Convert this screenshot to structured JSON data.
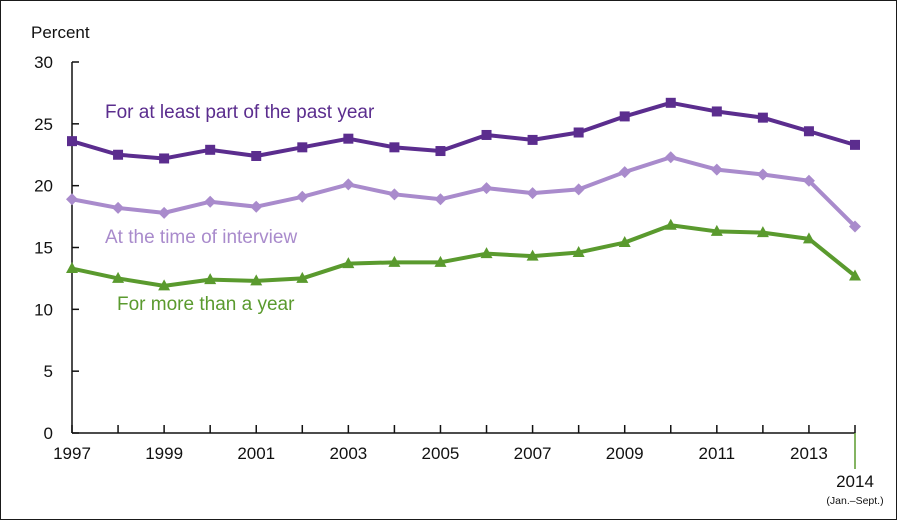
{
  "chart_data": {
    "type": "line",
    "title": "",
    "ylabel": "Percent",
    "xlabel": "",
    "ylim": [
      0,
      30
    ],
    "yticks": [
      0,
      5,
      10,
      15,
      20,
      25,
      30
    ],
    "x": [
      "1997",
      "1998",
      "1999",
      "2000",
      "2001",
      "2002",
      "2003",
      "2004",
      "2005",
      "2006",
      "2007",
      "2008",
      "2009",
      "2010",
      "2011",
      "2012",
      "2013",
      "2014"
    ],
    "xtick_labels": [
      "1997",
      "1999",
      "2001",
      "2003",
      "2005",
      "2007",
      "2009",
      "2011",
      "2013",
      "2014"
    ],
    "last_x_note": "(Jan.–Sept.)",
    "grid": false,
    "legend": "inline labels",
    "series": [
      {
        "name": "For at least part of the past year",
        "color": "#5b2d8e",
        "marker": "square",
        "values": [
          23.6,
          22.5,
          22.2,
          22.9,
          22.4,
          23.1,
          23.8,
          23.1,
          22.8,
          24.1,
          23.7,
          24.3,
          25.6,
          26.7,
          26.0,
          25.5,
          24.4,
          23.3
        ]
      },
      {
        "name": "At the time of interview",
        "color": "#a98bcc",
        "marker": "diamond",
        "values": [
          18.9,
          18.2,
          17.8,
          18.7,
          18.3,
          19.1,
          20.1,
          19.3,
          18.9,
          19.8,
          19.4,
          19.7,
          21.1,
          22.3,
          21.3,
          20.9,
          20.4,
          16.7
        ]
      },
      {
        "name": "For more than a year",
        "color": "#5a9a2e",
        "marker": "triangle",
        "values": [
          13.3,
          12.5,
          11.9,
          12.4,
          12.3,
          12.5,
          13.7,
          13.8,
          13.8,
          14.5,
          14.3,
          14.6,
          15.4,
          16.8,
          16.3,
          16.2,
          15.7,
          12.7
        ]
      }
    ]
  }
}
